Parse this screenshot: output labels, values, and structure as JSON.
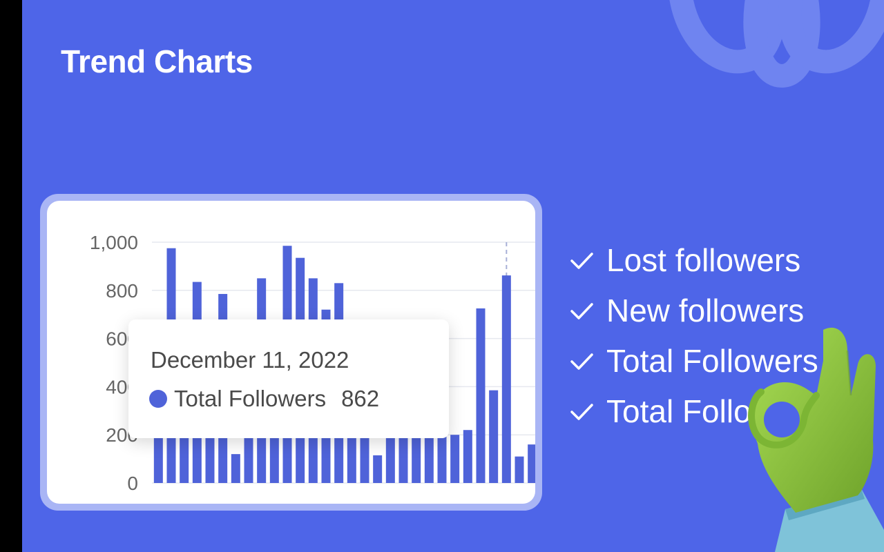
{
  "colors": {
    "background": "#4e65e8",
    "card_frame": "#a9b5f5",
    "bar": "#4f63d9",
    "grid": "#e6e8ef",
    "deco": "#6f84f0",
    "glove": "#8bc53a",
    "sleeve": "#7fc3d9"
  },
  "icons": {
    "check": "check-icon",
    "logo": "brand-logo-icon",
    "hand": "ok-hand-icon"
  },
  "header": {
    "title": "Trend Charts"
  },
  "features": [
    {
      "label": "Lost followers"
    },
    {
      "label": "New followers"
    },
    {
      "label": "Total Followers"
    },
    {
      "label": "Total Followers"
    }
  ],
  "tooltip": {
    "date": "December 11, 2022",
    "series": "Total Followers",
    "value": "862"
  },
  "chart_data": {
    "type": "bar",
    "title": "",
    "xlabel": "",
    "ylabel": "",
    "ylim": [
      0,
      1000
    ],
    "y_ticks": [
      0,
      200,
      400,
      600,
      800,
      1000
    ],
    "y_tick_labels": [
      "0",
      "200",
      "400",
      "600",
      "800",
      "1,000"
    ],
    "grid": true,
    "highlight_index": 27,
    "series": [
      {
        "name": "Total Followers",
        "values": [
          200,
          975,
          200,
          835,
          200,
          785,
          120,
          200,
          850,
          200,
          985,
          935,
          850,
          720,
          830,
          200,
          200,
          115,
          200,
          200,
          200,
          200,
          200,
          200,
          220,
          725,
          385,
          862,
          110,
          160
        ]
      }
    ]
  }
}
